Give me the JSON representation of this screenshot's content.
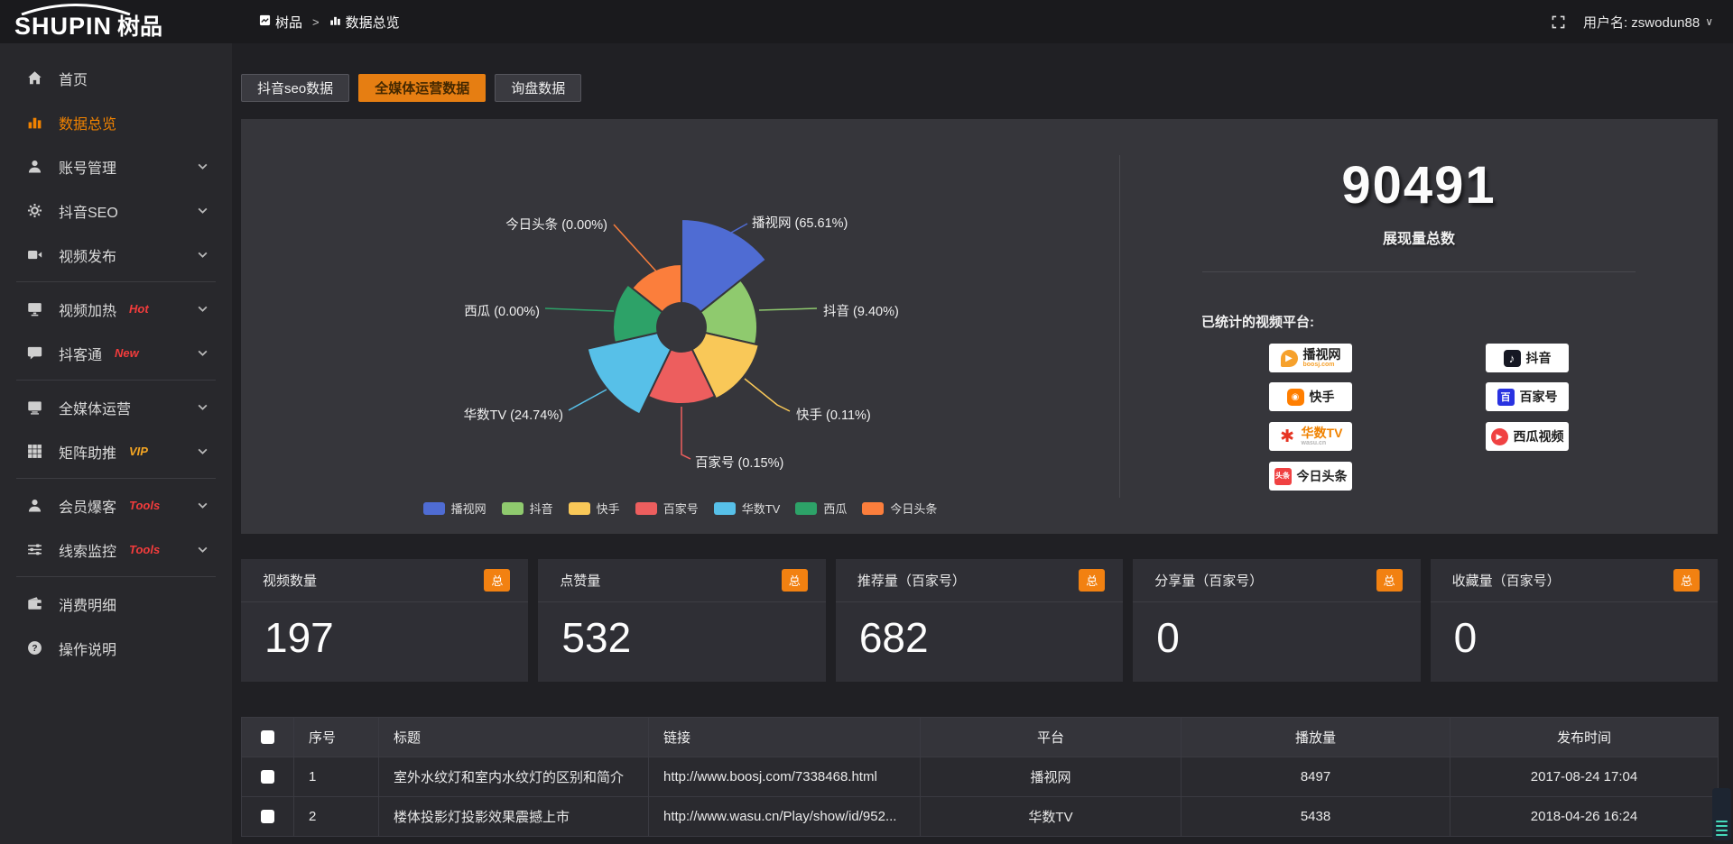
{
  "topbar": {
    "logo_en": "SHUPIN",
    "logo_cn": "树品",
    "breadcrumb_home": "树品",
    "breadcrumb_sep": ">",
    "breadcrumb_current": "数据总览",
    "username": "用户名: zswodun88"
  },
  "sidebar": {
    "items": [
      {
        "label": "首页",
        "icon": "home"
      },
      {
        "label": "数据总览",
        "icon": "chart",
        "active": true
      },
      {
        "label": "账号管理",
        "icon": "user",
        "chevron": true
      },
      {
        "label": "抖音SEO",
        "icon": "gear",
        "chevron": true
      },
      {
        "label": "视频发布",
        "icon": "video",
        "chevron": true
      },
      {
        "divider": true
      },
      {
        "label": "视频加热",
        "icon": "monitor-play",
        "badge": "Hot",
        "badge_color": "#f23c3c",
        "chevron": true
      },
      {
        "label": "抖客通",
        "icon": "chat",
        "badge": "New",
        "badge_color": "#f23c3c",
        "chevron": true
      },
      {
        "divider": true
      },
      {
        "label": "全媒体运营",
        "icon": "monitor",
        "chevron": true
      },
      {
        "label": "矩阵助推",
        "icon": "grid",
        "badge": "VIP",
        "badge_color": "#f5a623",
        "chevron": true
      },
      {
        "divider": true
      },
      {
        "label": "会员爆客",
        "icon": "user",
        "badge": "Tools",
        "badge_color": "#f23c3c",
        "chevron": true
      },
      {
        "label": "线索监控",
        "icon": "sliders",
        "badge": "Tools",
        "badge_color": "#f23c3c",
        "chevron": true
      },
      {
        "divider": true
      },
      {
        "label": "消费明细",
        "icon": "wallet"
      },
      {
        "label": "操作说明",
        "icon": "question"
      }
    ]
  },
  "tabs": [
    {
      "label": "抖音seo数据",
      "active": false
    },
    {
      "label": "全媒体运营数据",
      "active": true
    },
    {
      "label": "询盘数据",
      "active": false
    }
  ],
  "chart_data": {
    "type": "pie",
    "variant": "nightingale-rose",
    "legend_position": "bottom",
    "inner_radius": 27,
    "label_format": "{name} ({pct}%)",
    "slices": [
      {
        "name": "播视网",
        "pct": 65.61,
        "color": "#4f6cd3",
        "radius": 120
      },
      {
        "name": "抖音",
        "pct": 9.4,
        "color": "#8fca6e",
        "radius": 84
      },
      {
        "name": "快手",
        "pct": 0.11,
        "color": "#f9c858",
        "radius": 88
      },
      {
        "name": "百家号",
        "pct": 0.15,
        "color": "#ed5e5e",
        "radius": 85
      },
      {
        "name": "华数TV",
        "pct": 24.74,
        "color": "#57c0e8",
        "radius": 107
      },
      {
        "name": "西瓜",
        "pct": 0.0,
        "color": "#2da268",
        "radius": 76
      },
      {
        "name": "今日头条",
        "pct": 0.0,
        "color": "#fb7e3c",
        "radius": 70
      }
    ]
  },
  "summary": {
    "total_value": "90491",
    "total_label": "展现量总数",
    "platforms_label": "已统计的视频平台:",
    "badges_left": [
      {
        "name": "播视网",
        "sub": "boosj.com",
        "logo": "boosj",
        "color": "#f6a12c",
        "sub_color": "#f6a12c"
      },
      {
        "name": "快手",
        "logo": "kuaishou",
        "color": "#ff7e00"
      },
      {
        "name": "华数TV",
        "sub": "wasu.cn",
        "logo": "wasu",
        "color": "#e63322",
        "text_color": "#f08200",
        "sub_color": "#b5b5b5"
      },
      {
        "name": "今日头条",
        "logo": "toutiao",
        "color": "#f04142"
      }
    ],
    "badges_right": [
      {
        "name": "抖音",
        "logo": "douyin",
        "color": "#161823"
      },
      {
        "name": "百家号",
        "logo": "baijia",
        "color": "#2932e1"
      },
      {
        "name": "西瓜视频",
        "logo": "xigua",
        "color": "#f04142"
      }
    ]
  },
  "stat_cards": [
    {
      "label": "视频数量",
      "badge": "总",
      "value": "197"
    },
    {
      "label": "点赞量",
      "badge": "总",
      "value": "532"
    },
    {
      "label": "推荐量（百家号）",
      "badge": "总",
      "value": "682"
    },
    {
      "label": "分享量（百家号）",
      "badge": "总",
      "value": "0"
    },
    {
      "label": "收藏量（百家号）",
      "badge": "总",
      "value": "0"
    }
  ],
  "table": {
    "headers": [
      "序号",
      "标题",
      "链接",
      "平台",
      "播放量",
      "发布时间"
    ],
    "rows": [
      {
        "index": "1",
        "title": "室外水纹灯和室内水纹灯的区别和简介",
        "link": "http://www.boosj.com/7338468.html",
        "platform": "播视网",
        "plays": "8497",
        "time": "2017-08-24 17:04"
      },
      {
        "index": "2",
        "title": "楼体投影灯投影效果震撼上市",
        "link": "http://www.wasu.cn/Play/show/id/952...",
        "platform": "华数TV",
        "plays": "5438",
        "time": "2018-04-26 16:24"
      }
    ]
  },
  "colors": {
    "accent": "#f08200",
    "tab_active": "#e67e12",
    "badge_total": "#f28111",
    "link_orange": "#ef8332",
    "panel_bg": "#36363b"
  }
}
